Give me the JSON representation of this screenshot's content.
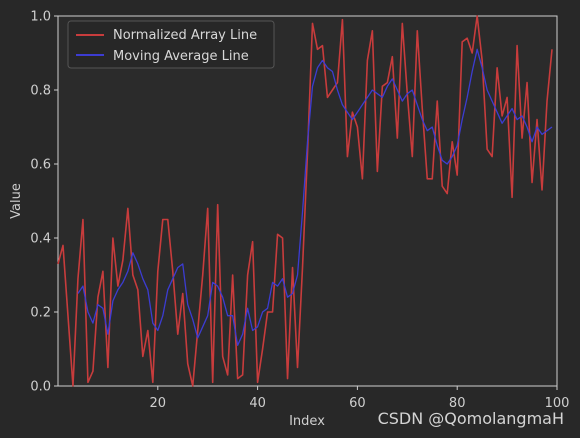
{
  "chart_data": {
    "type": "line",
    "xlabel": "Index",
    "ylabel": "Value",
    "xlim": [
      0,
      100
    ],
    "ylim": [
      0.0,
      1.0
    ],
    "xticks": [
      20,
      40,
      60,
      80,
      100
    ],
    "yticks": [
      0.0,
      0.2,
      0.4,
      0.6,
      0.8,
      1.0
    ],
    "xtick_labels": [
      "20",
      "40",
      "60",
      "80",
      "100"
    ],
    "ytick_labels": [
      "0.0",
      "0.2",
      "0.4",
      "0.6",
      "0.8",
      "1.0"
    ],
    "grid": false,
    "legend_position": "top-left",
    "series": [
      {
        "name": "Normalized Array Line",
        "color": "#c83c3c",
        "x_start": 0,
        "values": [
          0.33,
          0.38,
          0.19,
          0.0,
          0.29,
          0.45,
          0.01,
          0.04,
          0.24,
          0.31,
          0.05,
          0.4,
          0.27,
          0.34,
          0.48,
          0.3,
          0.26,
          0.08,
          0.15,
          0.01,
          0.31,
          0.45,
          0.45,
          0.31,
          0.14,
          0.25,
          0.06,
          0.0,
          0.15,
          0.3,
          0.48,
          0.01,
          0.49,
          0.08,
          0.03,
          0.3,
          0.02,
          0.03,
          0.3,
          0.39,
          0.01,
          0.1,
          0.2,
          0.2,
          0.41,
          0.4,
          0.02,
          0.32,
          0.05,
          0.32,
          0.63,
          0.98,
          0.91,
          0.92,
          0.78,
          0.8,
          0.82,
          0.99,
          0.62,
          0.74,
          0.7,
          0.56,
          0.88,
          0.96,
          0.58,
          0.81,
          0.82,
          0.89,
          0.67,
          0.98,
          0.79,
          0.62,
          0.96,
          0.75,
          0.56,
          0.56,
          0.77,
          0.54,
          0.52,
          0.66,
          0.57,
          0.93,
          0.94,
          0.9,
          1.0,
          0.88,
          0.64,
          0.62,
          0.86,
          0.73,
          0.78,
          0.51,
          0.92,
          0.67,
          0.82,
          0.55,
          0.72,
          0.53,
          0.77,
          0.91
        ]
      },
      {
        "name": "Moving Average Line",
        "color": "#3c3cd2",
        "x_start": 4,
        "values": [
          0.25,
          0.27,
          0.2,
          0.17,
          0.22,
          0.21,
          0.14,
          0.23,
          0.26,
          0.28,
          0.31,
          0.36,
          0.33,
          0.29,
          0.26,
          0.17,
          0.15,
          0.19,
          0.26,
          0.29,
          0.32,
          0.33,
          0.22,
          0.18,
          0.13,
          0.16,
          0.19,
          0.28,
          0.27,
          0.24,
          0.19,
          0.19,
          0.11,
          0.14,
          0.21,
          0.15,
          0.16,
          0.2,
          0.21,
          0.28,
          0.27,
          0.29,
          0.24,
          0.25,
          0.3,
          0.47,
          0.66,
          0.81,
          0.86,
          0.88,
          0.86,
          0.85,
          0.8,
          0.76,
          0.74,
          0.72,
          0.74,
          0.76,
          0.78,
          0.8,
          0.79,
          0.78,
          0.81,
          0.83,
          0.8,
          0.77,
          0.79,
          0.8,
          0.76,
          0.72,
          0.69,
          0.7,
          0.65,
          0.61,
          0.6,
          0.62,
          0.65,
          0.72,
          0.78,
          0.85,
          0.91,
          0.86,
          0.8,
          0.77,
          0.74,
          0.71,
          0.73,
          0.75,
          0.72,
          0.73,
          0.7,
          0.66,
          0.7,
          0.68,
          0.69,
          0.7
        ]
      }
    ]
  },
  "watermark": "CSDN @QomolangmaH"
}
